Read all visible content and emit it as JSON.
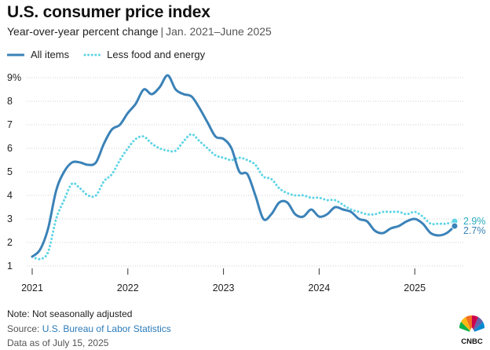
{
  "title": "U.S. consumer price index",
  "subtitle": {
    "main": "Year-over-year percent change",
    "separator": "|",
    "range": "Jan. 2021–June 2025"
  },
  "legend": {
    "all_items": "All items",
    "core": "Less food and energy"
  },
  "colors": {
    "all_items": "#3b82b8",
    "core": "#5fd4e6",
    "grid": "#cfcfcf",
    "axis": "#333333"
  },
  "footer": {
    "note": "Note: Not seasonally adjusted",
    "source_prefix": "Source:",
    "source_link": "U.S. Bureau of Labor Statistics",
    "data_as_of": "Data as of July 15, 2025"
  },
  "logo": {
    "text": "CNBC",
    "icon": "nbc-peacock-icon"
  },
  "chart_data": {
    "type": "line",
    "title": "U.S. consumer price index",
    "subtitle": "Year-over-year percent change | Jan. 2021–June 2025",
    "x_unit": "month",
    "x": [
      "2021-01",
      "2021-02",
      "2021-03",
      "2021-04",
      "2021-05",
      "2021-06",
      "2021-07",
      "2021-08",
      "2021-09",
      "2021-10",
      "2021-11",
      "2021-12",
      "2022-01",
      "2022-02",
      "2022-03",
      "2022-04",
      "2022-05",
      "2022-06",
      "2022-07",
      "2022-08",
      "2022-09",
      "2022-10",
      "2022-11",
      "2022-12",
      "2023-01",
      "2023-02",
      "2023-03",
      "2023-04",
      "2023-05",
      "2023-06",
      "2023-07",
      "2023-08",
      "2023-09",
      "2023-10",
      "2023-11",
      "2023-12",
      "2024-01",
      "2024-02",
      "2024-03",
      "2024-04",
      "2024-05",
      "2024-06",
      "2024-07",
      "2024-08",
      "2024-09",
      "2024-10",
      "2024-11",
      "2024-12",
      "2025-01",
      "2025-02",
      "2025-03",
      "2025-04",
      "2025-05",
      "2025-06"
    ],
    "xticks": [
      "2021",
      "2022",
      "2023",
      "2024",
      "2025"
    ],
    "yticks": [
      "9%",
      "8",
      "7",
      "6",
      "5",
      "4",
      "3",
      "2",
      "1"
    ],
    "ylim": [
      1,
      9
    ],
    "grid": true,
    "legend_position": "top-left",
    "series": [
      {
        "name": "All items",
        "style": "solid",
        "values": [
          1.4,
          1.7,
          2.6,
          4.2,
          5.0,
          5.4,
          5.4,
          5.3,
          5.4,
          6.2,
          6.8,
          7.0,
          7.5,
          7.9,
          8.5,
          8.3,
          8.6,
          9.1,
          8.5,
          8.3,
          8.2,
          7.7,
          7.1,
          6.5,
          6.4,
          6.0,
          5.0,
          4.9,
          4.0,
          3.0,
          3.2,
          3.7,
          3.7,
          3.2,
          3.1,
          3.4,
          3.1,
          3.2,
          3.5,
          3.4,
          3.3,
          3.0,
          2.9,
          2.5,
          2.4,
          2.6,
          2.7,
          2.9,
          3.0,
          2.8,
          2.4,
          2.3,
          2.4,
          2.7
        ],
        "end_label": "2.7%"
      },
      {
        "name": "Less food and energy",
        "style": "dotted",
        "values": [
          1.4,
          1.3,
          1.6,
          3.0,
          3.8,
          4.5,
          4.3,
          4.0,
          4.0,
          4.6,
          4.9,
          5.5,
          6.0,
          6.4,
          6.5,
          6.2,
          6.0,
          5.9,
          5.9,
          6.3,
          6.6,
          6.3,
          6.0,
          5.7,
          5.6,
          5.5,
          5.6,
          5.5,
          5.3,
          4.8,
          4.7,
          4.3,
          4.1,
          4.0,
          4.0,
          3.9,
          3.9,
          3.8,
          3.8,
          3.6,
          3.4,
          3.3,
          3.2,
          3.2,
          3.3,
          3.3,
          3.3,
          3.2,
          3.3,
          3.1,
          2.8,
          2.8,
          2.8,
          2.9
        ],
        "end_label": "2.9%"
      }
    ]
  }
}
